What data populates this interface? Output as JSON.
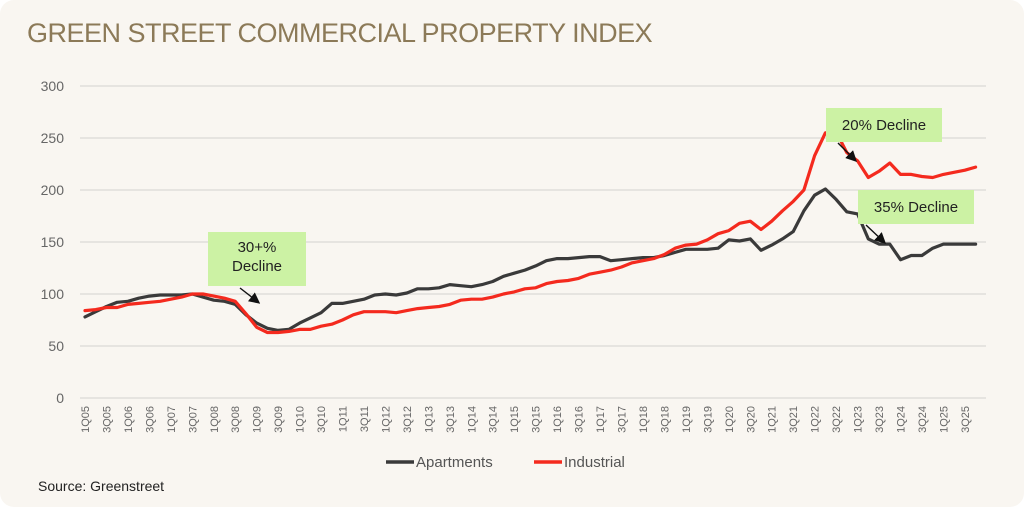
{
  "title": "GREEN STREET COMMERCIAL PROPERTY INDEX",
  "source": "Source: Greenstreet",
  "colors": {
    "apartments": "#3a3a3a",
    "industrial": "#f42a1e",
    "annotation_bg": "#ccf2a4",
    "title": "#8c7a58",
    "grid": "#dcdad6"
  },
  "chart_data": {
    "type": "line",
    "title": "GREEN STREET COMMERCIAL PROPERTY INDEX",
    "xlabel": "",
    "ylabel": "",
    "ylim": [
      0,
      300
    ],
    "yticks": [
      0,
      50,
      100,
      150,
      200,
      250,
      300
    ],
    "grid": true,
    "legend_position": "bottom",
    "x": [
      "1Q05",
      "2Q05",
      "3Q05",
      "4Q05",
      "1Q06",
      "2Q06",
      "3Q06",
      "4Q06",
      "1Q07",
      "2Q07",
      "3Q07",
      "4Q07",
      "1Q08",
      "2Q08",
      "3Q08",
      "4Q08",
      "1Q09",
      "2Q09",
      "3Q09",
      "4Q09",
      "1Q10",
      "2Q10",
      "3Q10",
      "4Q10",
      "1Q11",
      "2Q11",
      "3Q11",
      "4Q11",
      "1Q12",
      "2Q12",
      "3Q12",
      "4Q12",
      "1Q13",
      "2Q13",
      "3Q13",
      "4Q13",
      "1Q14",
      "2Q14",
      "3Q14",
      "4Q14",
      "1Q15",
      "2Q15",
      "3Q15",
      "4Q15",
      "1Q16",
      "2Q16",
      "3Q16",
      "4Q16",
      "1Q17",
      "2Q17",
      "3Q17",
      "4Q17",
      "1Q18",
      "2Q18",
      "3Q18",
      "4Q18",
      "1Q19",
      "2Q19",
      "3Q19",
      "4Q19",
      "1Q20",
      "2Q20",
      "3Q20",
      "4Q20",
      "1Q21",
      "2Q21",
      "3Q21",
      "4Q21",
      "1Q22",
      "2Q22",
      "3Q22",
      "4Q22",
      "1Q23",
      "2Q23",
      "3Q23",
      "4Q23",
      "1Q24",
      "2Q24",
      "3Q24",
      "4Q24",
      "1Q25",
      "2Q25",
      "3Q25",
      "4Q25"
    ],
    "xtick_labels": [
      "1Q05",
      "3Q05",
      "1Q06",
      "3Q06",
      "1Q07",
      "3Q07",
      "1Q08",
      "3Q08",
      "1Q09",
      "3Q09",
      "1Q10",
      "3Q10",
      "1Q11",
      "3Q11",
      "1Q12",
      "3Q12",
      "1Q13",
      "3Q13",
      "1Q14",
      "3Q14",
      "1Q15",
      "3Q15",
      "1Q16",
      "3Q16",
      "1Q17",
      "3Q17",
      "1Q18",
      "3Q18",
      "1Q19",
      "3Q19",
      "1Q20",
      "3Q20",
      "1Q21",
      "3Q21",
      "1Q22",
      "3Q22",
      "1Q23",
      "3Q23",
      "1Q24",
      "3Q24",
      "1Q25",
      "3Q25"
    ],
    "series": [
      {
        "name": "Apartments",
        "color": "#3a3a3a",
        "values": [
          78,
          83,
          88,
          92,
          93,
          96,
          98,
          99,
          99,
          99,
          100,
          97,
          94,
          93,
          90,
          80,
          72,
          67,
          65,
          66,
          72,
          77,
          82,
          91,
          91,
          93,
          95,
          99,
          100,
          99,
          101,
          105,
          105,
          106,
          109,
          108,
          107,
          109,
          112,
          117,
          120,
          123,
          127,
          132,
          134,
          134,
          135,
          136,
          136,
          132,
          133,
          134,
          135,
          135,
          137,
          140,
          143,
          143,
          143,
          144,
          152,
          151,
          153,
          142,
          147,
          153,
          160,
          180,
          195,
          201,
          191,
          179,
          177,
          153,
          148,
          148,
          133,
          137,
          137,
          144,
          148,
          148,
          148,
          148
        ]
      },
      {
        "name": "Industrial",
        "color": "#f42a1e",
        "values": [
          84,
          85,
          87,
          87,
          90,
          91,
          92,
          93,
          95,
          97,
          100,
          100,
          98,
          96,
          93,
          81,
          68,
          63,
          63,
          64,
          66,
          66,
          69,
          71,
          75,
          80,
          83,
          83,
          83,
          82,
          84,
          86,
          87,
          88,
          90,
          94,
          95,
          95,
          97,
          100,
          102,
          105,
          106,
          110,
          112,
          113,
          115,
          119,
          121,
          123,
          126,
          130,
          132,
          134,
          138,
          144,
          147,
          148,
          152,
          158,
          161,
          168,
          170,
          162,
          170,
          180,
          189,
          200,
          233,
          255,
          256,
          236,
          228,
          212,
          218,
          226,
          215,
          215,
          213,
          212,
          215,
          217,
          219,
          222
        ]
      }
    ],
    "annotations": [
      {
        "text_lines": [
          "30+%",
          "Decline"
        ],
        "target_series": "Industrial",
        "target_x": "3Q09"
      },
      {
        "text_lines": [
          "20% Decline"
        ],
        "target_series": "Industrial",
        "target_x": "2Q23"
      },
      {
        "text_lines": [
          "35% Decline"
        ],
        "target_series": "Apartments",
        "target_x": "3Q23"
      }
    ]
  }
}
